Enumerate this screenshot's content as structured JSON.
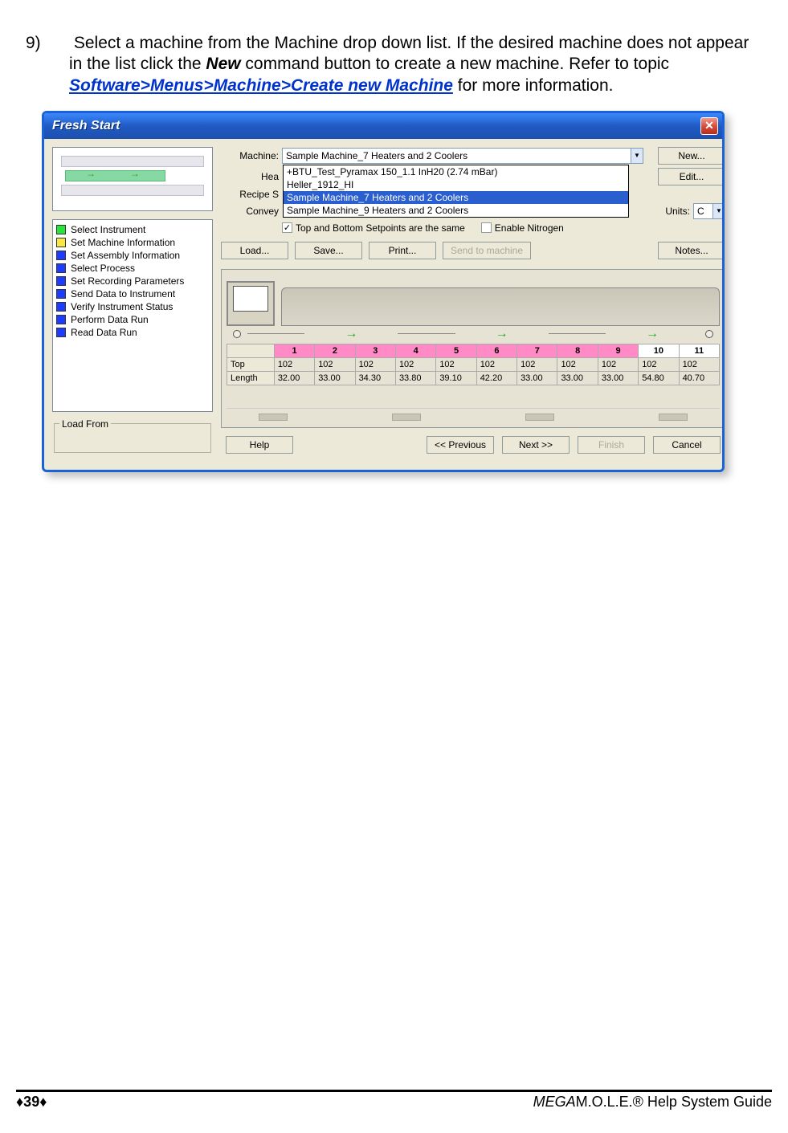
{
  "instruction": {
    "number": "9)",
    "text_before": "Select a machine from the Machine drop down list. If the desired machine does not appear in the list click the ",
    "bold1": "New",
    "text_mid": " command button to create a new machine. Refer to topic ",
    "link": "Software>Menus>Machine>Create new Machine",
    "text_after": " for more information."
  },
  "window": {
    "title": "Fresh Start",
    "close_glyph": "✕"
  },
  "steps": [
    {
      "color": "green",
      "label": "Select Instrument"
    },
    {
      "color": "yellow",
      "label": "Set Machine Information"
    },
    {
      "color": "blue",
      "label": "Set Assembly Information"
    },
    {
      "color": "blue",
      "label": "Select Process"
    },
    {
      "color": "blue",
      "label": "Set Recording Parameters"
    },
    {
      "color": "blue",
      "label": "Send Data to Instrument"
    },
    {
      "color": "blue",
      "label": "Verify Instrument Status"
    },
    {
      "color": "blue",
      "label": "Perform Data Run"
    },
    {
      "color": "blue",
      "label": "Read Data Run"
    }
  ],
  "loadfrom_label": "Load From",
  "form": {
    "machine_label": "Machine:",
    "heater_label": "Hea",
    "recipe_label": "Recipe S",
    "convey_label": "Convey",
    "machine_value": "Sample Machine_7 Heaters and 2 Coolers",
    "dropdown_options": [
      "+BTU_Test_Pyramax 150_1.1 InH20 (2.74 mBar)",
      "Heller_1912_HI",
      "Sample Machine_7 Heaters and 2 Coolers",
      "Sample Machine_9 Heaters and 2 Coolers"
    ],
    "dropdown_selected_index": 2,
    "units_label": "Units:",
    "units_value": "C",
    "cb_top_bottom": "Top and Bottom Setpoints are the same",
    "cb_nitrogen": "Enable Nitrogen"
  },
  "buttons": {
    "new": "New...",
    "edit": "Edit...",
    "load": "Load...",
    "save": "Save...",
    "print": "Print...",
    "send_machine": "Send to machine",
    "notes": "Notes...",
    "help": "Help",
    "prev": "<< Previous",
    "next": "Next >>",
    "finish": "Finish",
    "cancel": "Cancel"
  },
  "zones": {
    "headers": [
      "",
      "1",
      "2",
      "3",
      "4",
      "5",
      "6",
      "7",
      "8",
      "9",
      "10",
      "11"
    ],
    "pink_count": 9,
    "rows": [
      {
        "label": "Top",
        "vals": [
          "102",
          "102",
          "102",
          "102",
          "102",
          "102",
          "102",
          "102",
          "102",
          "102",
          "102"
        ]
      },
      {
        "label": "Length",
        "vals": [
          "32.00",
          "33.00",
          "34.30",
          "33.80",
          "39.10",
          "42.20",
          "33.00",
          "33.00",
          "33.00",
          "54.80",
          "40.70"
        ]
      }
    ]
  },
  "footer": {
    "page": "♦39♦",
    "guide_ital": "MEGA",
    "guide_rest": "M.O.L.E.® Help System Guide"
  },
  "chevron": "▼"
}
